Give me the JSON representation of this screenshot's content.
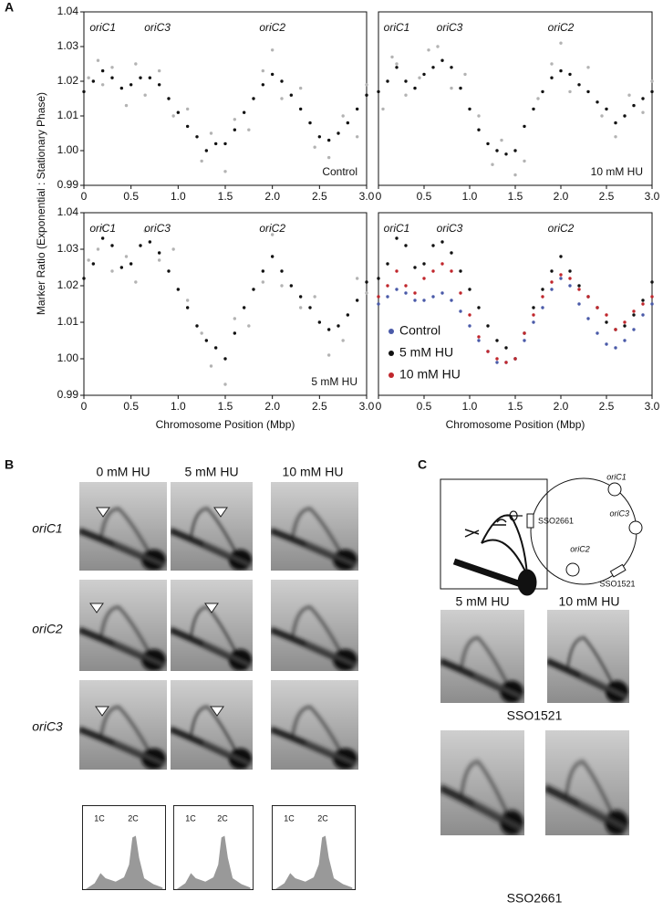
{
  "panel_a": {
    "label": "A",
    "ylabel": "Marker Ratio (Exponential : Stationary Phase)"
  },
  "chart_data": [
    {
      "type": "scatter",
      "annotations": [
        "oriC1",
        "oriC3",
        "oriC2"
      ],
      "label": "Control",
      "xlim": [
        0,
        3
      ],
      "ylim": [
        0.99,
        1.04
      ],
      "xticks": [
        0,
        0.5,
        {
          "value": 1,
          "label": "1.0"
        },
        1.5,
        {
          "value": 2,
          "label": "2.0"
        },
        2.5,
        {
          "value": 3,
          "label": "3.0"
        }
      ],
      "yticks": [
        0.99,
        {
          "value": 1,
          "label": "1.00"
        },
        1.01,
        1.02,
        1.03,
        1.04
      ],
      "x": [
        0,
        0.1,
        0.2,
        0.3,
        0.4,
        0.5,
        0.6,
        0.7,
        0.8,
        0.9,
        1,
        1.1,
        1.2,
        1.3,
        1.4,
        1.5,
        1.6,
        1.7,
        1.8,
        1.9,
        2,
        2.1,
        2.2,
        2.3,
        2.4,
        2.5,
        2.6,
        2.7,
        2.8,
        2.9,
        3
      ],
      "series": [
        {
          "color": "#b3b3b3",
          "x": [
            0.05,
            0.15,
            0.2,
            0.3,
            0.45,
            0.55,
            0.65,
            0.8,
            0.95,
            1.1,
            1.25,
            1.35,
            1.5,
            1.6,
            1.75,
            1.9,
            2,
            2.1,
            2.3,
            2.45,
            2.6,
            2.75,
            2.9,
            3
          ],
          "values": [
            1.021,
            1.026,
            1.019,
            1.024,
            1.013,
            1.025,
            1.016,
            1.023,
            1.01,
            1.012,
            0.997,
            1.005,
            0.994,
            1.009,
            1.006,
            1.023,
            1.029,
            1.015,
            1.018,
            1.001,
            0.998,
            1.01,
            1.004,
            1.019
          ]
        },
        {
          "color": "#111111",
          "values": [
            1.017,
            1.02,
            1.023,
            1.021,
            1.018,
            1.019,
            1.021,
            1.021,
            1.019,
            1.015,
            1.011,
            1.007,
            1.004,
            1,
            1.002,
            1.002,
            1.006,
            1.011,
            1.015,
            1.019,
            1.022,
            1.02,
            1.016,
            1.012,
            1.008,
            1.004,
            1.003,
            1.005,
            1.008,
            1.012,
            1.016
          ]
        }
      ]
    },
    {
      "type": "scatter",
      "annotations": [
        "oriC1",
        "oriC3",
        "oriC2"
      ],
      "label": "10 mM HU",
      "xlim": [
        0,
        3
      ],
      "ylim": [
        0.99,
        1.04
      ],
      "xticks": [
        0,
        0.5,
        {
          "value": 1,
          "label": "1.0"
        },
        1.5,
        {
          "value": 2,
          "label": "2.0"
        },
        2.5,
        {
          "value": 3,
          "label": "3.0"
        }
      ],
      "x": [
        0,
        0.1,
        0.2,
        0.3,
        0.4,
        0.5,
        0.6,
        0.7,
        0.8,
        0.9,
        1,
        1.1,
        1.2,
        1.3,
        1.4,
        1.5,
        1.6,
        1.7,
        1.8,
        1.9,
        2,
        2.1,
        2.2,
        2.3,
        2.4,
        2.5,
        2.6,
        2.7,
        2.8,
        2.9,
        3
      ],
      "series": [
        {
          "color": "#b3b3b3",
          "x": [
            0.05,
            0.15,
            0.2,
            0.3,
            0.45,
            0.55,
            0.65,
            0.8,
            0.95,
            1.1,
            1.25,
            1.35,
            1.5,
            1.6,
            1.75,
            1.9,
            2,
            2.1,
            2.3,
            2.45,
            2.6,
            2.75,
            2.9,
            3
          ],
          "values": [
            1.012,
            1.027,
            1.025,
            1.016,
            1.021,
            1.029,
            1.03,
            1.018,
            1.022,
            1.01,
            0.996,
            1.003,
            0.993,
            0.997,
            1.015,
            1.025,
            1.031,
            1.017,
            1.024,
            1.01,
            1.004,
            1.016,
            1.011,
            1.02
          ]
        },
        {
          "color": "#111111",
          "values": [
            1.017,
            1.02,
            1.024,
            1.02,
            1.018,
            1.022,
            1.024,
            1.026,
            1.024,
            1.018,
            1.012,
            1.006,
            1.002,
            1,
            0.999,
            1,
            1.007,
            1.012,
            1.017,
            1.021,
            1.023,
            1.022,
            1.019,
            1.017,
            1.014,
            1.012,
            1.008,
            1.01,
            1.013,
            1.015,
            1.017
          ]
        }
      ]
    },
    {
      "type": "scatter",
      "annotations": [
        "oriC1",
        "oriC3",
        "oriC2"
      ],
      "label": "5 mM HU",
      "xlabel": "Chromosome Position (Mbp)",
      "xlim": [
        0,
        3
      ],
      "ylim": [
        0.99,
        1.04
      ],
      "xticks": [
        0,
        0.5,
        {
          "value": 1,
          "label": "1.0"
        },
        1.5,
        {
          "value": 2,
          "label": "2.0"
        },
        2.5,
        {
          "value": 3,
          "label": "3.0"
        }
      ],
      "yticks": [
        0.99,
        {
          "value": 1,
          "label": "1.00"
        },
        1.01,
        1.02,
        1.03,
        1.04
      ],
      "x": [
        0,
        0.1,
        0.2,
        0.3,
        0.4,
        0.5,
        0.6,
        0.7,
        0.8,
        0.9,
        1,
        1.1,
        1.2,
        1.3,
        1.4,
        1.5,
        1.6,
        1.7,
        1.8,
        1.9,
        2,
        2.1,
        2.2,
        2.3,
        2.4,
        2.5,
        2.6,
        2.7,
        2.8,
        2.9,
        3
      ],
      "series": [
        {
          "color": "#b3b3b3",
          "x": [
            0.05,
            0.15,
            0.2,
            0.3,
            0.45,
            0.55,
            0.65,
            0.8,
            0.95,
            1.1,
            1.25,
            1.35,
            1.5,
            1.6,
            1.75,
            1.9,
            2,
            2.1,
            2.3,
            2.45,
            2.6,
            2.75,
            2.9,
            3
          ],
          "values": [
            1.027,
            1.03,
            1.036,
            1.024,
            1.028,
            1.021,
            1.035,
            1.027,
            1.03,
            1.016,
            1.007,
            0.998,
            0.993,
            1.011,
            1.009,
            1.021,
            1.034,
            1.02,
            1.014,
            1.017,
            1.001,
            1.005,
            1.022,
            1.018
          ]
        },
        {
          "color": "#111111",
          "values": [
            1.022,
            1.026,
            1.033,
            1.031,
            1.025,
            1.026,
            1.031,
            1.032,
            1.029,
            1.024,
            1.019,
            1.014,
            1.009,
            1.005,
            1.003,
            1,
            1.007,
            1.014,
            1.019,
            1.024,
            1.028,
            1.024,
            1.02,
            1.017,
            1.014,
            1.01,
            1.008,
            1.009,
            1.012,
            1.016,
            1.021
          ]
        }
      ]
    },
    {
      "type": "scatter",
      "annotations": [
        "oriC1",
        "oriC3",
        "oriC2"
      ],
      "xlabel": "Chromosome Position (Mbp)",
      "legend": "lower left",
      "xlim": [
        0,
        3
      ],
      "ylim": [
        0.99,
        1.04
      ],
      "xticks": [
        0,
        0.5,
        {
          "value": 1,
          "label": "1.0"
        },
        1.5,
        {
          "value": 2,
          "label": "2.0"
        },
        2.5,
        {
          "value": 3,
          "label": "3.0"
        }
      ],
      "x": [
        0,
        0.1,
        0.2,
        0.3,
        0.4,
        0.5,
        0.6,
        0.7,
        0.8,
        0.9,
        1,
        1.1,
        1.2,
        1.3,
        1.4,
        1.5,
        1.6,
        1.7,
        1.8,
        1.9,
        2,
        2.1,
        2.2,
        2.3,
        2.4,
        2.5,
        2.6,
        2.7,
        2.8,
        2.9,
        3
      ],
      "series": [
        {
          "name": "Control",
          "color": "#4a5aa8",
          "values": [
            1.015,
            1.017,
            1.019,
            1.018,
            1.016,
            1.016,
            1.017,
            1.018,
            1.016,
            1.013,
            1.009,
            1.005,
            1.002,
            0.999,
            0.999,
            1,
            1.005,
            1.01,
            1.014,
            1.019,
            1.022,
            1.02,
            1.015,
            1.011,
            1.007,
            1.004,
            1.003,
            1.005,
            1.008,
            1.012,
            1.015
          ]
        },
        {
          "name": "5 mM HU",
          "color": "#111111",
          "values": [
            1.022,
            1.026,
            1.033,
            1.031,
            1.025,
            1.026,
            1.031,
            1.032,
            1.029,
            1.024,
            1.019,
            1.014,
            1.009,
            1.005,
            1.003,
            1,
            1.007,
            1.014,
            1.019,
            1.024,
            1.028,
            1.024,
            1.02,
            1.017,
            1.014,
            1.01,
            1.008,
            1.009,
            1.012,
            1.016,
            1.021
          ]
        },
        {
          "name": "10 mM HU",
          "color": "#c0262c",
          "values": [
            1.017,
            1.02,
            1.024,
            1.02,
            1.018,
            1.022,
            1.024,
            1.026,
            1.024,
            1.018,
            1.012,
            1.006,
            1.002,
            1,
            0.999,
            1,
            1.007,
            1.012,
            1.017,
            1.021,
            1.023,
            1.022,
            1.019,
            1.017,
            1.014,
            1.012,
            1.008,
            1.01,
            1.013,
            1.015,
            1.017
          ]
        }
      ]
    }
  ],
  "panel_b": {
    "label": "B",
    "columns": [
      "0 mM HU",
      "5 mM HU",
      "10 mM HU"
    ],
    "rows": [
      "oriC1",
      "oriC2",
      "oriC3"
    ],
    "histogram_labels": [
      "1C",
      "2C"
    ]
  },
  "panel_c": {
    "label": "C",
    "diagram_labels": [
      "oriC1",
      "SSO2661",
      "oriC3",
      "oriC2",
      "SSO1521"
    ],
    "columns": [
      "5 mM HU",
      "10 mM HU"
    ],
    "rows": [
      "SSO1521",
      "SSO2661"
    ]
  }
}
